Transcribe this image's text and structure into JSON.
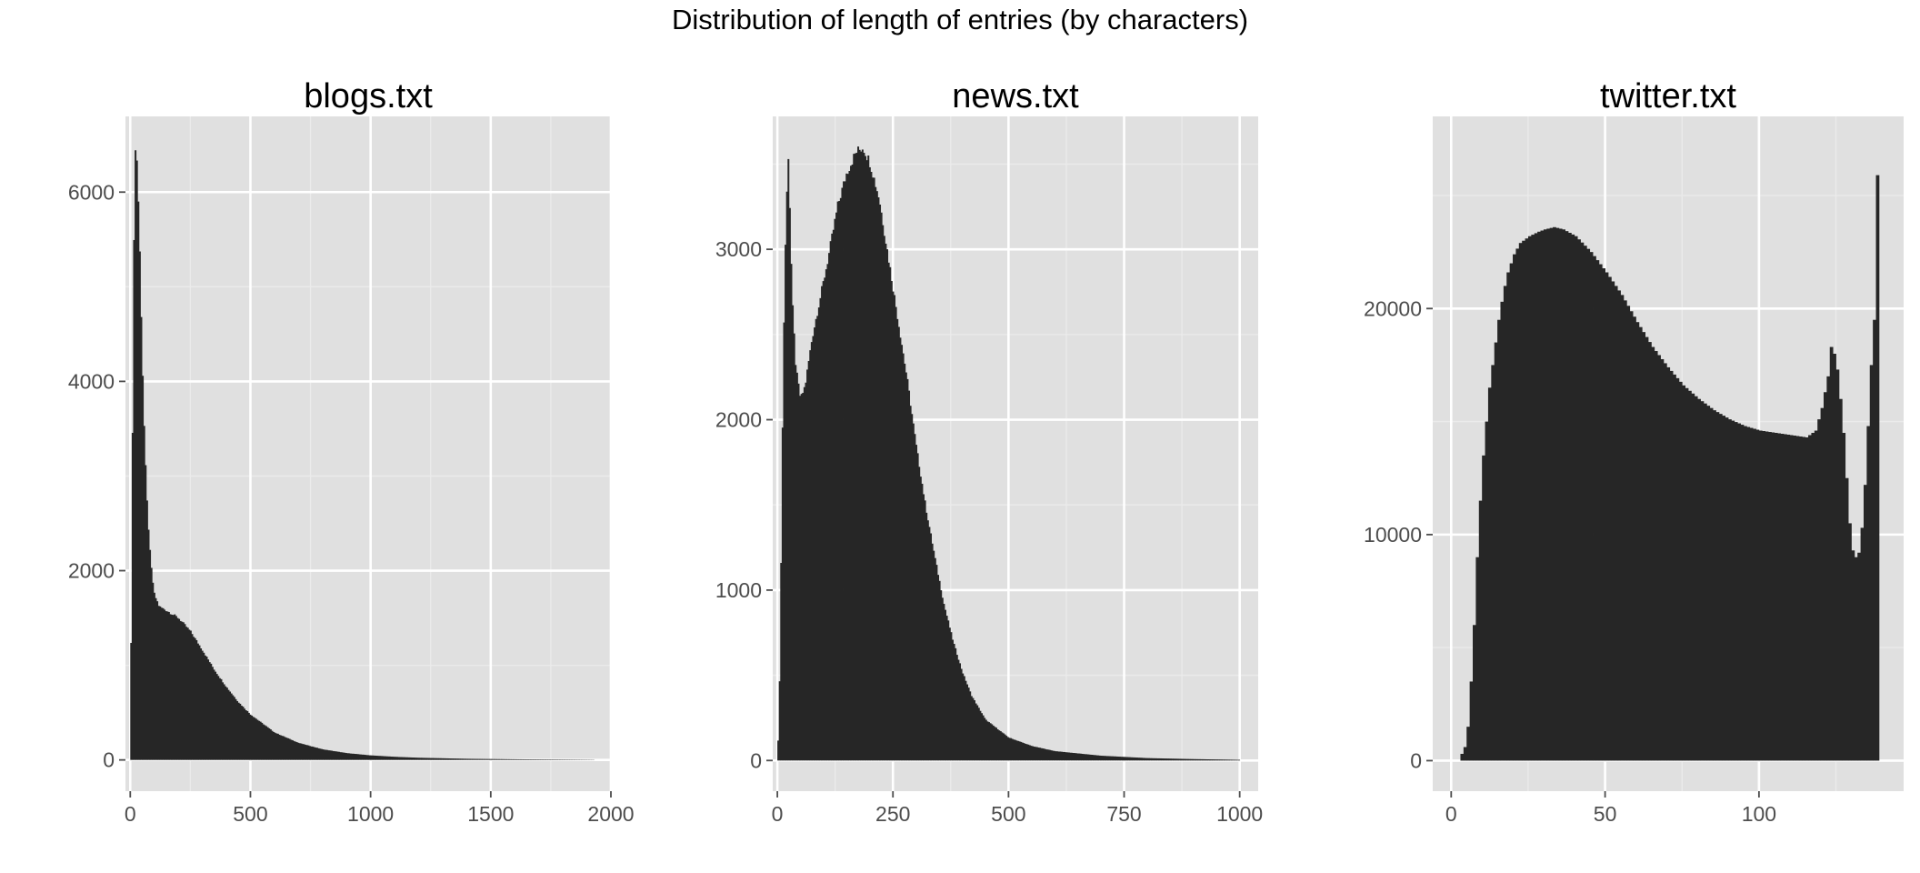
{
  "figure": {
    "title": "Distribution of length of entries (by characters)"
  },
  "style": {
    "panel_bg": "#e0e0e0",
    "grid_major": "#ffffff",
    "grid_minor": "#ebebeb",
    "bar_fill": "#262626",
    "tick_color": "#4d4d4d"
  },
  "chart_data": [
    {
      "type": "histogram",
      "title": "blogs.txt",
      "xlabel": "",
      "ylabel": "",
      "xlim": [
        -20,
        2000
      ],
      "ylim": [
        -330,
        6800
      ],
      "x_ticks": [
        0,
        500,
        1000,
        1500,
        2000
      ],
      "y_ticks": [
        0,
        2000,
        4000,
        6000
      ],
      "grid": true,
      "profile": [
        [
          0,
          0
        ],
        [
          4,
          1650
        ],
        [
          8,
          3000
        ],
        [
          12,
          4600
        ],
        [
          16,
          5800
        ],
        [
          20,
          6400
        ],
        [
          24,
          6520
        ],
        [
          30,
          6200
        ],
        [
          40,
          5300
        ],
        [
          50,
          4200
        ],
        [
          60,
          3300
        ],
        [
          70,
          2700
        ],
        [
          80,
          2250
        ],
        [
          90,
          1950
        ],
        [
          100,
          1750
        ],
        [
          120,
          1620
        ],
        [
          150,
          1580
        ],
        [
          200,
          1500
        ],
        [
          250,
          1360
        ],
        [
          300,
          1160
        ],
        [
          350,
          950
        ],
        [
          400,
          770
        ],
        [
          450,
          610
        ],
        [
          500,
          480
        ],
        [
          600,
          290
        ],
        [
          700,
          180
        ],
        [
          800,
          112
        ],
        [
          900,
          72
        ],
        [
          1000,
          48
        ],
        [
          1100,
          33
        ],
        [
          1200,
          23
        ],
        [
          1400,
          12
        ],
        [
          1600,
          7
        ],
        [
          1800,
          4
        ],
        [
          1930,
          2
        ]
      ]
    },
    {
      "type": "histogram",
      "title": "news.txt",
      "xlabel": "",
      "ylabel": "",
      "xlim": [
        -10,
        1040
      ],
      "ylim": [
        -180,
        3780
      ],
      "x_ticks": [
        0,
        250,
        500,
        750,
        1000
      ],
      "y_ticks": [
        0,
        1000,
        2000,
        3000
      ],
      "grid": true,
      "profile": [
        [
          0,
          0
        ],
        [
          4,
          300
        ],
        [
          8,
          1200
        ],
        [
          12,
          2200
        ],
        [
          16,
          2900
        ],
        [
          20,
          3300
        ],
        [
          24,
          3580
        ],
        [
          28,
          3100
        ],
        [
          32,
          2700
        ],
        [
          40,
          2300
        ],
        [
          50,
          2120
        ],
        [
          60,
          2200
        ],
        [
          75,
          2480
        ],
        [
          90,
          2680
        ],
        [
          110,
          2950
        ],
        [
          130,
          3250
        ],
        [
          150,
          3450
        ],
        [
          170,
          3570
        ],
        [
          185,
          3600
        ],
        [
          200,
          3510
        ],
        [
          220,
          3300
        ],
        [
          240,
          2950
        ],
        [
          260,
          2600
        ],
        [
          280,
          2250
        ],
        [
          300,
          1850
        ],
        [
          320,
          1500
        ],
        [
          340,
          1200
        ],
        [
          360,
          920
        ],
        [
          380,
          700
        ],
        [
          400,
          520
        ],
        [
          420,
          380
        ],
        [
          450,
          240
        ],
        [
          500,
          135
        ],
        [
          550,
          85
        ],
        [
          600,
          55
        ],
        [
          700,
          28
        ],
        [
          800,
          14
        ],
        [
          900,
          8
        ],
        [
          1000,
          4
        ]
      ]
    },
    {
      "type": "histogram",
      "title": "twitter.txt",
      "xlabel": "",
      "ylabel": "",
      "xlim": [
        -6,
        147
      ],
      "ylim": [
        -1350,
        28500
      ],
      "x_ticks": [
        0,
        50,
        100
      ],
      "y_ticks": [
        0,
        10000,
        20000
      ],
      "grid": true,
      "profile": [
        [
          2,
          0
        ],
        [
          3,
          300
        ],
        [
          4,
          600
        ],
        [
          5,
          1500
        ],
        [
          6,
          3500
        ],
        [
          7,
          6000
        ],
        [
          8,
          9000
        ],
        [
          9,
          11500
        ],
        [
          10,
          13500
        ],
        [
          11,
          15000
        ],
        [
          12,
          16500
        ],
        [
          13,
          17500
        ],
        [
          14,
          18500
        ],
        [
          15,
          19500
        ],
        [
          16,
          20300
        ],
        [
          17,
          21000
        ],
        [
          18,
          21600
        ],
        [
          20,
          22400
        ],
        [
          22,
          22900
        ],
        [
          25,
          23200
        ],
        [
          28,
          23400
        ],
        [
          30,
          23500
        ],
        [
          33,
          23600
        ],
        [
          36,
          23500
        ],
        [
          40,
          23200
        ],
        [
          45,
          22500
        ],
        [
          50,
          21600
        ],
        [
          55,
          20600
        ],
        [
          60,
          19400
        ],
        [
          65,
          18300
        ],
        [
          70,
          17400
        ],
        [
          75,
          16600
        ],
        [
          80,
          16000
        ],
        [
          85,
          15500
        ],
        [
          90,
          15100
        ],
        [
          95,
          14800
        ],
        [
          100,
          14600
        ],
        [
          105,
          14500
        ],
        [
          110,
          14400
        ],
        [
          115,
          14300
        ],
        [
          118,
          14600
        ],
        [
          120,
          15600
        ],
        [
          122,
          17000
        ],
        [
          123,
          18300
        ],
        [
          124,
          18000
        ],
        [
          125,
          17300
        ],
        [
          126,
          16000
        ],
        [
          127,
          14500
        ],
        [
          128,
          12500
        ],
        [
          129,
          10500
        ],
        [
          130,
          9300
        ],
        [
          131,
          9000
        ],
        [
          132,
          9200
        ],
        [
          133,
          10300
        ],
        [
          134,
          12200
        ],
        [
          135,
          14800
        ],
        [
          136,
          17500
        ],
        [
          137,
          19500
        ],
        [
          138,
          25900
        ],
        [
          139,
          0
        ]
      ]
    }
  ]
}
